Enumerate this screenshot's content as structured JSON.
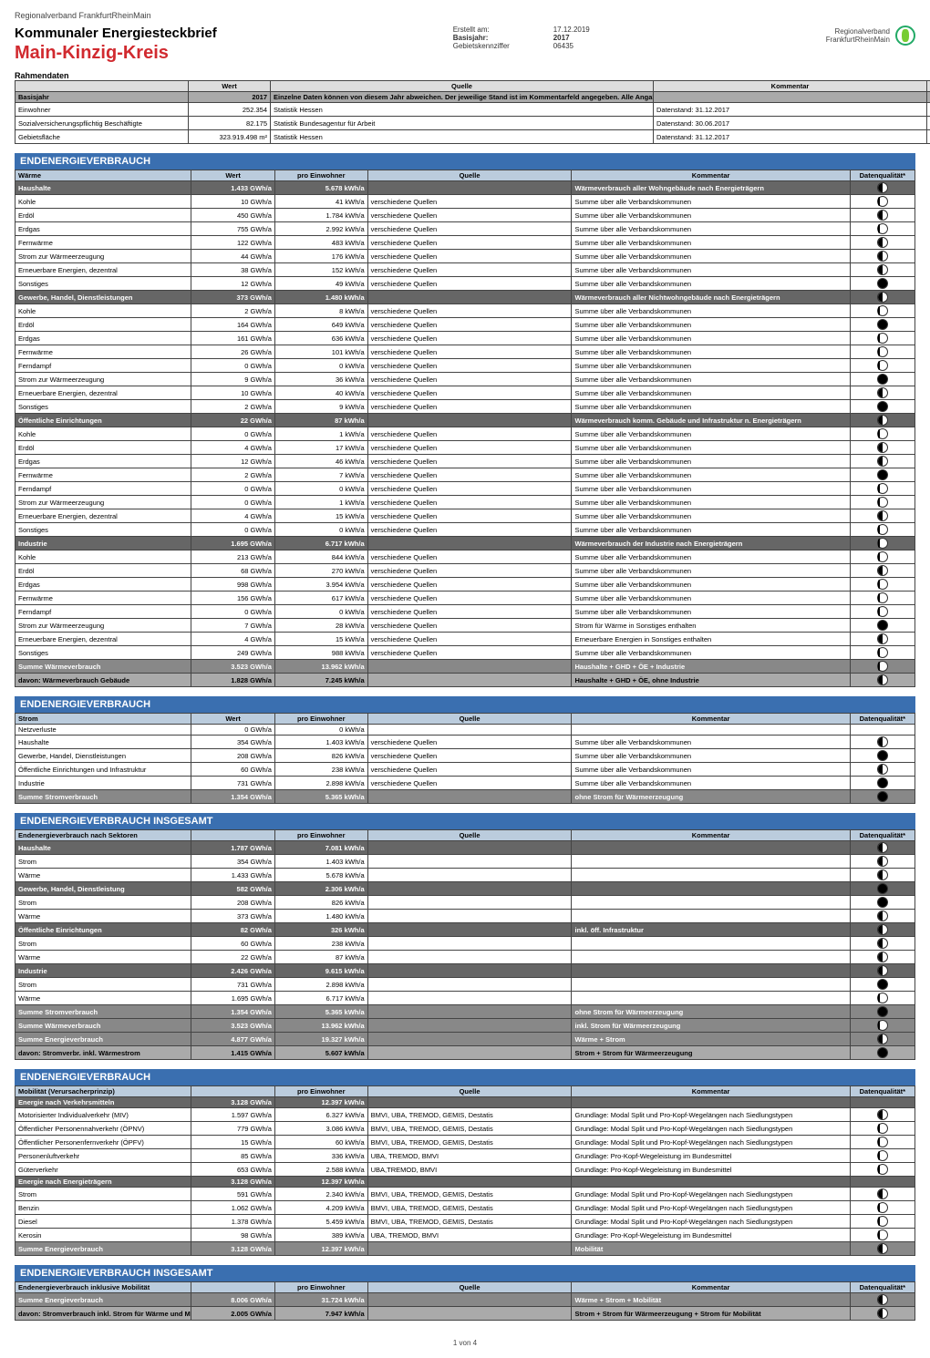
{
  "pretitle": "Regionalverband FrankfurtRheinMain",
  "doc_title": "Kommunaler Energiesteckbrief",
  "region_title": "Main-Kinzig-Kreis",
  "meta": {
    "erstellt_k": "Erstellt am:",
    "erstellt_v": "17.12.2019",
    "basis_k": "Basisjahr:",
    "basis_v": "2017",
    "gebiet_k": "Gebietskennziffer",
    "gebiet_v": "06435"
  },
  "brand_l1": "Regionalverband",
  "brand_l2": "FrankfurtRheinMain",
  "rahmen_title": "Rahmendaten",
  "headers": {
    "wert": "Wert",
    "quelle": "Quelle",
    "kommentar": "Kommentar",
    "dq": "Datenqualität*",
    "pro": "pro Einwohner",
    "label": ""
  },
  "rahmen_rows": [
    {
      "label": "Basisjahr",
      "wert": "2017",
      "quelle": "Einzelne Daten können von diesem Jahr abweichen. Der jeweilige Stand ist im Kommentarfeld angegeben. Alle Angaben beziehen sich auf das Basisjahr.",
      "kommentar": "",
      "dq": "",
      "group": true
    },
    {
      "label": "Einwohner",
      "wert": "252.354",
      "quelle": "Statistik Hessen",
      "kommentar": "Datenstand: 31.12.2017",
      "dq": "full"
    },
    {
      "label": "Sozialversicherungspflichtig Beschäftigte",
      "wert": "82.175",
      "quelle": "Statistik Bundesagentur für Arbeit",
      "kommentar": "Datenstand: 30.06.2017",
      "dq": "full"
    },
    {
      "label": "Gebietsfläche",
      "wert": "323.919.498 m²",
      "quelle": "Statistik Hessen",
      "kommentar": "Datenstand: 31.12.2017",
      "dq": "full"
    }
  ],
  "sec1_title": "ENDENERGIEVERBRAUCH",
  "sec1_sub": "Wärme",
  "sec1_rows": [
    {
      "label": "Haushalte",
      "wert": "1.433 GWh/a",
      "pro": "5.678 kWh/a",
      "quelle": "",
      "komm": "Wärmeverbrauch aller Wohngebäude nach Energieträgern",
      "dq": "half",
      "head": true
    },
    {
      "label": "Kohle",
      "wert": "10 GWh/a",
      "pro": "41 kWh/a",
      "quelle": "verschiedene Quellen",
      "komm": "Summe über alle Verbandskommunen",
      "dq": "qtr"
    },
    {
      "label": "Erdöl",
      "wert": "450 GWh/a",
      "pro": "1.784 kWh/a",
      "quelle": "verschiedene Quellen",
      "komm": "Summe über alle Verbandskommunen",
      "dq": "half"
    },
    {
      "label": "Erdgas",
      "wert": "755 GWh/a",
      "pro": "2.992 kWh/a",
      "quelle": "verschiedene Quellen",
      "komm": "Summe über alle Verbandskommunen",
      "dq": "qtr"
    },
    {
      "label": "Fernwärme",
      "wert": "122 GWh/a",
      "pro": "483 kWh/a",
      "quelle": "verschiedene Quellen",
      "komm": "Summe über alle Verbandskommunen",
      "dq": "half"
    },
    {
      "label": "Strom zur Wärmeerzeugung",
      "wert": "44 GWh/a",
      "pro": "176 kWh/a",
      "quelle": "verschiedene Quellen",
      "komm": "Summe über alle Verbandskommunen",
      "dq": "half"
    },
    {
      "label": "Erneuerbare Energien, dezentral",
      "wert": "38 GWh/a",
      "pro": "152 kWh/a",
      "quelle": "verschiedene Quellen",
      "komm": "Summe über alle Verbandskommunen",
      "dq": "half"
    },
    {
      "label": "Sonstiges",
      "wert": "12 GWh/a",
      "pro": "49 kWh/a",
      "quelle": "verschiedene Quellen",
      "komm": "Summe über alle Verbandskommunen",
      "dq": "full"
    },
    {
      "label": "Gewerbe, Handel, Dienstleistungen",
      "wert": "373 GWh/a",
      "pro": "1.480 kWh/a",
      "quelle": "",
      "komm": "Wärmeverbrauch aller Nichtwohngebäude nach Energieträgern",
      "dq": "half",
      "head": true
    },
    {
      "label": "Kohle",
      "wert": "2 GWh/a",
      "pro": "8 kWh/a",
      "quelle": "verschiedene Quellen",
      "komm": "Summe über alle Verbandskommunen",
      "dq": "qtr"
    },
    {
      "label": "Erdöl",
      "wert": "164 GWh/a",
      "pro": "649 kWh/a",
      "quelle": "verschiedene Quellen",
      "komm": "Summe über alle Verbandskommunen",
      "dq": "full"
    },
    {
      "label": "Erdgas",
      "wert": "161 GWh/a",
      "pro": "636 kWh/a",
      "quelle": "verschiedene Quellen",
      "komm": "Summe über alle Verbandskommunen",
      "dq": "qtr"
    },
    {
      "label": "Fernwärme",
      "wert": "26 GWh/a",
      "pro": "101 kWh/a",
      "quelle": "verschiedene Quellen",
      "komm": "Summe über alle Verbandskommunen",
      "dq": "qtr"
    },
    {
      "label": "Ferndampf",
      "wert": "0 GWh/a",
      "pro": "0 kWh/a",
      "quelle": "verschiedene Quellen",
      "komm": "Summe über alle Verbandskommunen",
      "dq": "qtr"
    },
    {
      "label": "Strom zur Wärmeerzeugung",
      "wert": "9 GWh/a",
      "pro": "36 kWh/a",
      "quelle": "verschiedene Quellen",
      "komm": "Summe über alle Verbandskommunen",
      "dq": "full"
    },
    {
      "label": "Erneuerbare Energien, dezentral",
      "wert": "10 GWh/a",
      "pro": "40 kWh/a",
      "quelle": "verschiedene Quellen",
      "komm": "Summe über alle Verbandskommunen",
      "dq": "half"
    },
    {
      "label": "Sonstiges",
      "wert": "2 GWh/a",
      "pro": "9 kWh/a",
      "quelle": "verschiedene Quellen",
      "komm": "Summe über alle Verbandskommunen",
      "dq": "full"
    },
    {
      "label": "Öffentliche Einrichtungen",
      "wert": "22 GWh/a",
      "pro": "87 kWh/a",
      "quelle": "",
      "komm": "Wärmeverbrauch komm. Gebäude und Infrastruktur n. Energieträgern",
      "dq": "half",
      "head": true
    },
    {
      "label": "Kohle",
      "wert": "0 GWh/a",
      "pro": "1 kWh/a",
      "quelle": "verschiedene Quellen",
      "komm": "Summe über alle Verbandskommunen",
      "dq": "qtr"
    },
    {
      "label": "Erdöl",
      "wert": "4 GWh/a",
      "pro": "17 kWh/a",
      "quelle": "verschiedene Quellen",
      "komm": "Summe über alle Verbandskommunen",
      "dq": "half"
    },
    {
      "label": "Erdgas",
      "wert": "12 GWh/a",
      "pro": "46 kWh/a",
      "quelle": "verschiedene Quellen",
      "komm": "Summe über alle Verbandskommunen",
      "dq": "half"
    },
    {
      "label": "Fernwärme",
      "wert": "2 GWh/a",
      "pro": "7 kWh/a",
      "quelle": "verschiedene Quellen",
      "komm": "Summe über alle Verbandskommunen",
      "dq": "full"
    },
    {
      "label": "Ferndampf",
      "wert": "0 GWh/a",
      "pro": "0 kWh/a",
      "quelle": "verschiedene Quellen",
      "komm": "Summe über alle Verbandskommunen",
      "dq": "qtr"
    },
    {
      "label": "Strom zur Wärmeerzeugung",
      "wert": "0 GWh/a",
      "pro": "1 kWh/a",
      "quelle": "verschiedene Quellen",
      "komm": "Summe über alle Verbandskommunen",
      "dq": "qtr"
    },
    {
      "label": "Erneuerbare Energien, dezentral",
      "wert": "4 GWh/a",
      "pro": "15 kWh/a",
      "quelle": "verschiedene Quellen",
      "komm": "Summe über alle Verbandskommunen",
      "dq": "half"
    },
    {
      "label": "Sonstiges",
      "wert": "0 GWh/a",
      "pro": "0 kWh/a",
      "quelle": "verschiedene Quellen",
      "komm": "Summe über alle Verbandskommunen",
      "dq": "qtr"
    },
    {
      "label": "Industrie",
      "wert": "1.695 GWh/a",
      "pro": "6.717 kWh/a",
      "quelle": "",
      "komm": "Wärmeverbrauch der Industrie nach Energieträgern",
      "dq": "qtr",
      "head": true
    },
    {
      "label": "Kohle",
      "wert": "213 GWh/a",
      "pro": "844 kWh/a",
      "quelle": "verschiedene Quellen",
      "komm": "Summe über alle Verbandskommunen",
      "dq": "qtr"
    },
    {
      "label": "Erdöl",
      "wert": "68 GWh/a",
      "pro": "270 kWh/a",
      "quelle": "verschiedene Quellen",
      "komm": "Summe über alle Verbandskommunen",
      "dq": "half"
    },
    {
      "label": "Erdgas",
      "wert": "998 GWh/a",
      "pro": "3.954 kWh/a",
      "quelle": "verschiedene Quellen",
      "komm": "Summe über alle Verbandskommunen",
      "dq": "qtr"
    },
    {
      "label": "Fernwärme",
      "wert": "156 GWh/a",
      "pro": "617 kWh/a",
      "quelle": "verschiedene Quellen",
      "komm": "Summe über alle Verbandskommunen",
      "dq": "qtr"
    },
    {
      "label": "Ferndampf",
      "wert": "0 GWh/a",
      "pro": "0 kWh/a",
      "quelle": "verschiedene Quellen",
      "komm": "Summe über alle Verbandskommunen",
      "dq": "qtr"
    },
    {
      "label": "Strom zur Wärmeerzeugung",
      "wert": "7 GWh/a",
      "pro": "28 kWh/a",
      "quelle": "verschiedene Quellen",
      "komm": "Strom für Wärme in Sonstiges enthalten",
      "dq": "full"
    },
    {
      "label": "Erneuerbare Energien, dezentral",
      "wert": "4 GWh/a",
      "pro": "15 kWh/a",
      "quelle": "verschiedene Quellen",
      "komm": "Erneuerbare Energien in Sonstiges enthalten",
      "dq": "half"
    },
    {
      "label": "Sonstiges",
      "wert": "249 GWh/a",
      "pro": "988 kWh/a",
      "quelle": "verschiedene Quellen",
      "komm": "Summe über alle Verbandskommunen",
      "dq": "qtr"
    },
    {
      "label": "Summe Wärmeverbrauch",
      "wert": "3.523 GWh/a",
      "pro": "13.962 kWh/a",
      "quelle": "",
      "komm": "Haushalte + GHD + ÖE + Industrie",
      "dq": "qtr",
      "sum": true
    },
    {
      "label": "davon: Wärmeverbrauch Gebäude",
      "wert": "1.828 GWh/a",
      "pro": "7.245 kWh/a",
      "quelle": "",
      "komm": "Haushalte + GHD + ÖE, ohne Industrie",
      "dq": "half",
      "sum2": true
    }
  ],
  "sec2_title": "ENDENERGIEVERBRAUCH",
  "sec2_sub": "Strom",
  "sec2_rows": [
    {
      "label": "Netzverluste",
      "wert": "0 GWh/a",
      "pro": "0 kWh/a",
      "quelle": "",
      "komm": "",
      "dq": ""
    },
    {
      "label": "Haushalte",
      "wert": "354 GWh/a",
      "pro": "1.403 kWh/a",
      "quelle": "verschiedene Quellen",
      "komm": "Summe über alle Verbandskommunen",
      "dq": "half"
    },
    {
      "label": "Gewerbe, Handel, Dienstleistungen",
      "wert": "208 GWh/a",
      "pro": "826 kWh/a",
      "quelle": "verschiedene Quellen",
      "komm": "Summe über alle Verbandskommunen",
      "dq": "full"
    },
    {
      "label": "Öffentliche Einrichtungen und Infrastruktur",
      "wert": "60 GWh/a",
      "pro": "238 kWh/a",
      "quelle": "verschiedene Quellen",
      "komm": "Summe über alle Verbandskommunen",
      "dq": "half"
    },
    {
      "label": "Industrie",
      "wert": "731 GWh/a",
      "pro": "2.898 kWh/a",
      "quelle": "verschiedene Quellen",
      "komm": "Summe über alle Verbandskommunen",
      "dq": "full"
    },
    {
      "label": "Summe Stromverbrauch",
      "wert": "1.354 GWh/a",
      "pro": "5.365 kWh/a",
      "quelle": "",
      "komm": "ohne Strom für Wärmeerzeugung",
      "dq": "full",
      "sum": true
    }
  ],
  "sec3_title": "ENDENERGIEVERBRAUCH INSGESAMT",
  "sec3_sub": "Endenergieverbrauch nach Sektoren",
  "sec3_rows": [
    {
      "label": "Haushalte",
      "wert": "1.787 GWh/a",
      "pro": "7.081 kWh/a",
      "quelle": "",
      "komm": "",
      "dq": "half",
      "head": true
    },
    {
      "label": "Strom",
      "wert": "354 GWh/a",
      "pro": "1.403 kWh/a",
      "quelle": "",
      "komm": "",
      "dq": "half"
    },
    {
      "label": "Wärme",
      "wert": "1.433 GWh/a",
      "pro": "5.678 kWh/a",
      "quelle": "",
      "komm": "",
      "dq": "half"
    },
    {
      "label": "Gewerbe, Handel, Dienstleistung",
      "wert": "582 GWh/a",
      "pro": "2.306 kWh/a",
      "quelle": "",
      "komm": "",
      "dq": "full",
      "head": true
    },
    {
      "label": "Strom",
      "wert": "208 GWh/a",
      "pro": "826 kWh/a",
      "quelle": "",
      "komm": "",
      "dq": "full"
    },
    {
      "label": "Wärme",
      "wert": "373 GWh/a",
      "pro": "1.480 kWh/a",
      "quelle": "",
      "komm": "",
      "dq": "half"
    },
    {
      "label": "Öffentliche Einrichtungen",
      "wert": "82 GWh/a",
      "pro": "326 kWh/a",
      "quelle": "",
      "komm": "inkl. öff. Infrastruktur",
      "dq": "half",
      "head": true
    },
    {
      "label": "Strom",
      "wert": "60 GWh/a",
      "pro": "238 kWh/a",
      "quelle": "",
      "komm": "",
      "dq": "half"
    },
    {
      "label": "Wärme",
      "wert": "22 GWh/a",
      "pro": "87 kWh/a",
      "quelle": "",
      "komm": "",
      "dq": "half"
    },
    {
      "label": "Industrie",
      "wert": "2.426 GWh/a",
      "pro": "9.615 kWh/a",
      "quelle": "",
      "komm": "",
      "dq": "half",
      "head": true
    },
    {
      "label": "Strom",
      "wert": "731 GWh/a",
      "pro": "2.898 kWh/a",
      "quelle": "",
      "komm": "",
      "dq": "full"
    },
    {
      "label": "Wärme",
      "wert": "1.695 GWh/a",
      "pro": "6.717 kWh/a",
      "quelle": "",
      "komm": "",
      "dq": "qtr"
    },
    {
      "label": "Summe Stromverbrauch",
      "wert": "1.354 GWh/a",
      "pro": "5.365 kWh/a",
      "quelle": "",
      "komm": "ohne Strom für Wärmeerzeugung",
      "dq": "full",
      "sum": true
    },
    {
      "label": "Summe Wärmeverbrauch",
      "wert": "3.523 GWh/a",
      "pro": "13.962 kWh/a",
      "quelle": "",
      "komm": "inkl. Strom für Wärmeerzeugung",
      "dq": "qtr",
      "sum": true
    },
    {
      "label": "Summe Energieverbrauch",
      "wert": "4.877 GWh/a",
      "pro": "19.327 kWh/a",
      "quelle": "",
      "komm": "Wärme + Strom",
      "dq": "half",
      "sum": true
    },
    {
      "label": "davon: Stromverbr. inkl. Wärmestrom",
      "wert": "1.415 GWh/a",
      "pro": "5.607 kWh/a",
      "quelle": "",
      "komm": "Strom + Strom für Wärmeerzeugung",
      "dq": "full",
      "sum2": true
    }
  ],
  "sec4_title": "ENDENERGIEVERBRAUCH",
  "sec4_sub": "Mobilität (Verursacherprinzip)",
  "sec4_rows": [
    {
      "label": "Energie nach Verkehrsmitteln",
      "wert": "3.128 GWh/a",
      "pro": "12.397 kWh/a",
      "quelle": "",
      "komm": "",
      "dq": "",
      "head": true
    },
    {
      "label": "Motorisierter Individualverkehr (MIV)",
      "wert": "1.597 GWh/a",
      "pro": "6.327 kWh/a",
      "quelle": "BMVI, UBA, TREMOD, GEMIS, Destatis",
      "komm": "Grundlage: Modal Split und Pro-Kopf-Wegelängen nach Siedlungstypen",
      "dq": "half"
    },
    {
      "label": "Öffentlicher Personennahverkehr (ÖPNV)",
      "wert": "779 GWh/a",
      "pro": "3.086 kWh/a",
      "quelle": "BMVI, UBA, TREMOD, GEMIS, Destatis",
      "komm": "Grundlage: Modal Split und Pro-Kopf-Wegelängen nach Siedlungstypen",
      "dq": "qtr"
    },
    {
      "label": "Öffentlicher Personenfernverkehr (ÖPFV)",
      "wert": "15 GWh/a",
      "pro": "60 kWh/a",
      "quelle": "BMVI, UBA, TREMOD, GEMIS, Destatis",
      "komm": "Grundlage: Modal Split und Pro-Kopf-Wegelängen nach Siedlungstypen",
      "dq": "qtr"
    },
    {
      "label": "Personenluftverkehr",
      "wert": "85 GWh/a",
      "pro": "336 kWh/a",
      "quelle": "UBA, TREMOD, BMVI",
      "komm": "Grundlage: Pro-Kopf-Wegeleistung im Bundesmittel",
      "dq": "qtr"
    },
    {
      "label": "Güterverkehr",
      "wert": "653 GWh/a",
      "pro": "2.588 kWh/a",
      "quelle": "UBA,TREMOD, BMVI",
      "komm": "Grundlage: Pro-Kopf-Wegeleistung im Bundesmittel",
      "dq": "qtr"
    },
    {
      "label": "Energie nach Energieträgern",
      "wert": "3.128 GWh/a",
      "pro": "12.397 kWh/a",
      "quelle": "",
      "komm": "",
      "dq": "",
      "head": true
    },
    {
      "label": "Strom",
      "wert": "591 GWh/a",
      "pro": "2.340 kWh/a",
      "quelle": "BMVI, UBA, TREMOD, GEMIS, Destatis",
      "komm": "Grundlage: Modal Split und Pro-Kopf-Wegelängen nach Siedlungstypen",
      "dq": "half"
    },
    {
      "label": "Benzin",
      "wert": "1.062 GWh/a",
      "pro": "4.209 kWh/a",
      "quelle": "BMVI, UBA, TREMOD, GEMIS, Destatis",
      "komm": "Grundlage: Modal Split und Pro-Kopf-Wegelängen nach Siedlungstypen",
      "dq": "qtr"
    },
    {
      "label": "Diesel",
      "wert": "1.378 GWh/a",
      "pro": "5.459 kWh/a",
      "quelle": "BMVI, UBA, TREMOD, GEMIS, Destatis",
      "komm": "Grundlage: Modal Split und Pro-Kopf-Wegelängen nach Siedlungstypen",
      "dq": "qtr"
    },
    {
      "label": "Kerosin",
      "wert": "98 GWh/a",
      "pro": "389 kWh/a",
      "quelle": "UBA, TREMOD, BMVI",
      "komm": "Grundlage: Pro-Kopf-Wegeleistung im Bundesmittel",
      "dq": "qtr"
    },
    {
      "label": "Summe Energieverbrauch",
      "wert": "3.128 GWh/a",
      "pro": "12.397 kWh/a",
      "quelle": "",
      "komm": "Mobilität",
      "dq": "half",
      "sum": true
    }
  ],
  "sec5_title": "ENDENERGIEVERBRAUCH INSGESAMT",
  "sec5_sub": "Endenergieverbrauch inklusive Mobilität",
  "sec5_rows": [
    {
      "label": "Summe Energieverbrauch",
      "wert": "8.006 GWh/a",
      "pro": "31.724 kWh/a",
      "quelle": "",
      "komm": "Wärme + Strom + Mobilität",
      "dq": "half",
      "sum": true
    },
    {
      "label": "davon: Stromverbrauch inkl. Strom für Wärme und Mobilität",
      "wert": "2.005 GWh/a",
      "pro": "7.947 kWh/a",
      "quelle": "",
      "komm": "Strom + Strom für Wärmeerzeugung + Strom für Mobilität",
      "dq": "half",
      "sum2": true
    }
  ],
  "footer": "1 von 4"
}
